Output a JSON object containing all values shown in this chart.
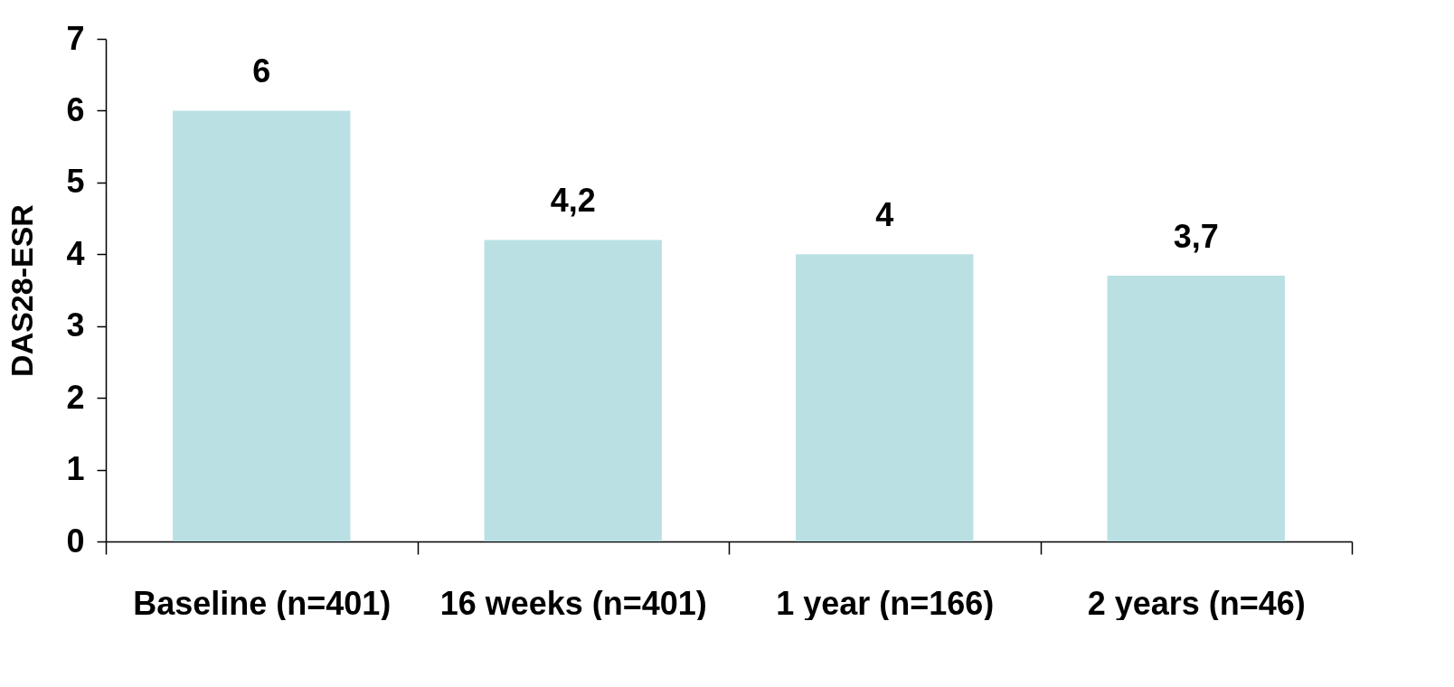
{
  "chart_data": {
    "type": "bar",
    "ylabel": "DAS28-ESR",
    "categories": [
      "Baseline\n(n=401)",
      "16 weeks\n(n=401)",
      "1 year (n=166)",
      "2 years (n=46)"
    ],
    "values": [
      6,
      4.2,
      4,
      3.7
    ],
    "value_labels": [
      "6",
      "4,2",
      "4",
      "3,7"
    ],
    "color": "#bae0e3",
    "ylim": [
      0,
      7
    ],
    "yticks": [
      0,
      1,
      2,
      3,
      4,
      5,
      6,
      7
    ],
    "grid": false
  }
}
